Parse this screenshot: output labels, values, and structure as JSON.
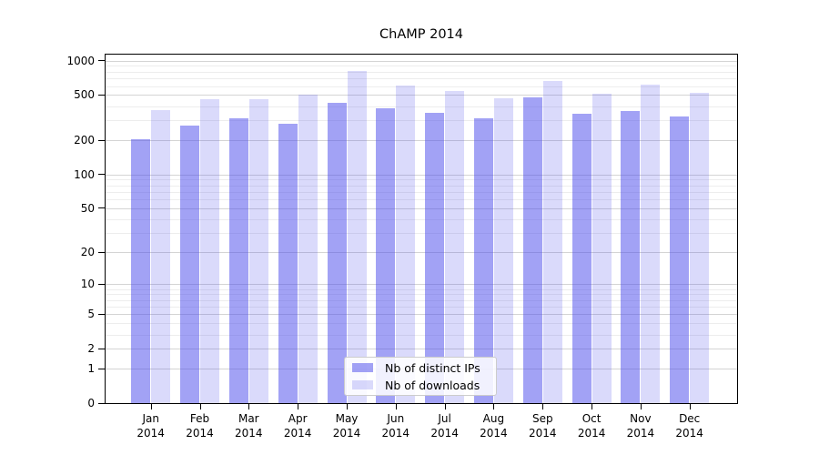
{
  "chart_data": {
    "type": "bar",
    "title": "ChAMP 2014",
    "categories": [
      "Jan",
      "Feb",
      "Mar",
      "Apr",
      "May",
      "Jun",
      "Jul",
      "Aug",
      "Sep",
      "Oct",
      "Nov",
      "Dec"
    ],
    "category_year": "2014",
    "series": [
      {
        "name": "Nb of distinct IPs",
        "fill": "rgba(70,70,235,0.5)",
        "values": [
          205,
          270,
          315,
          280,
          430,
          385,
          350,
          310,
          480,
          343,
          360,
          325
        ]
      },
      {
        "name": "Nb of downloads",
        "fill": "rgba(70,70,235,0.2)",
        "values": [
          370,
          464,
          456,
          500,
          820,
          610,
          545,
          465,
          670,
          515,
          615,
          520
        ]
      }
    ],
    "xlabel": "",
    "ylabel": "",
    "y_scale": "log10(1+y)",
    "y_ticks": [
      0,
      1,
      2,
      5,
      10,
      20,
      50,
      100,
      200,
      500,
      1000
    ],
    "y_minor_gridlines": [
      3,
      4,
      6,
      7,
      8,
      9,
      30,
      40,
      60,
      70,
      80,
      90,
      300,
      400,
      600,
      700,
      800,
      900
    ],
    "ylim": [
      0,
      1150
    ],
    "grid": true,
    "legend_position": "lower center",
    "colors": {
      "bar_dark": "#a6a6f5",
      "bar_light": "#dadaf9",
      "major_grid": "#d4d4d4",
      "minor_grid": "#ededed",
      "spine": "#000000",
      "text": "#000000",
      "legend_border": "#cccccc"
    }
  }
}
